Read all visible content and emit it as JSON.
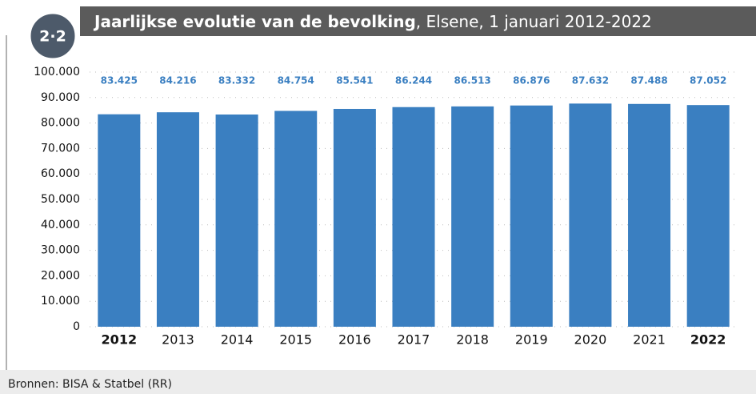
{
  "badge": "2·2",
  "footer": "Bronnen: BISA & Statbel (RR)",
  "chart_data": {
    "type": "bar",
    "title": "Jaarlijkse evolutie van de bevolking",
    "subtitle": ", Elsene, 1 januari 2012-2022",
    "categories": [
      "2012",
      "2013",
      "2014",
      "2015",
      "2016",
      "2017",
      "2018",
      "2019",
      "2020",
      "2021",
      "2022"
    ],
    "values": [
      83425,
      84216,
      83332,
      84754,
      85541,
      86244,
      86513,
      86876,
      87632,
      87488,
      87052
    ],
    "value_labels": [
      "83.425",
      "84.216",
      "83.332",
      "84.754",
      "85.541",
      "86.244",
      "86.513",
      "86.876",
      "87.632",
      "87.488",
      "87.052"
    ],
    "bold_categories": [
      0,
      10
    ],
    "color": "#3a7fc1",
    "ylim": [
      0,
      100000
    ],
    "yticks": [
      0,
      {
        "value": 10000,
        "label": "10.000"
      },
      {
        "value": 20000,
        "label": "20.000"
      },
      {
        "value": 30000,
        "label": "30.000"
      },
      {
        "value": 40000,
        "label": "40.000"
      },
      {
        "value": 50000,
        "label": "50.000"
      },
      {
        "value": 60000,
        "label": "60.000"
      },
      {
        "value": 70000,
        "label": "70.000"
      },
      {
        "value": 80000,
        "label": "80.000"
      },
      {
        "value": 90000,
        "label": "90.000"
      },
      {
        "value": 100000,
        "label": "100.000"
      }
    ],
    "grid": true
  }
}
